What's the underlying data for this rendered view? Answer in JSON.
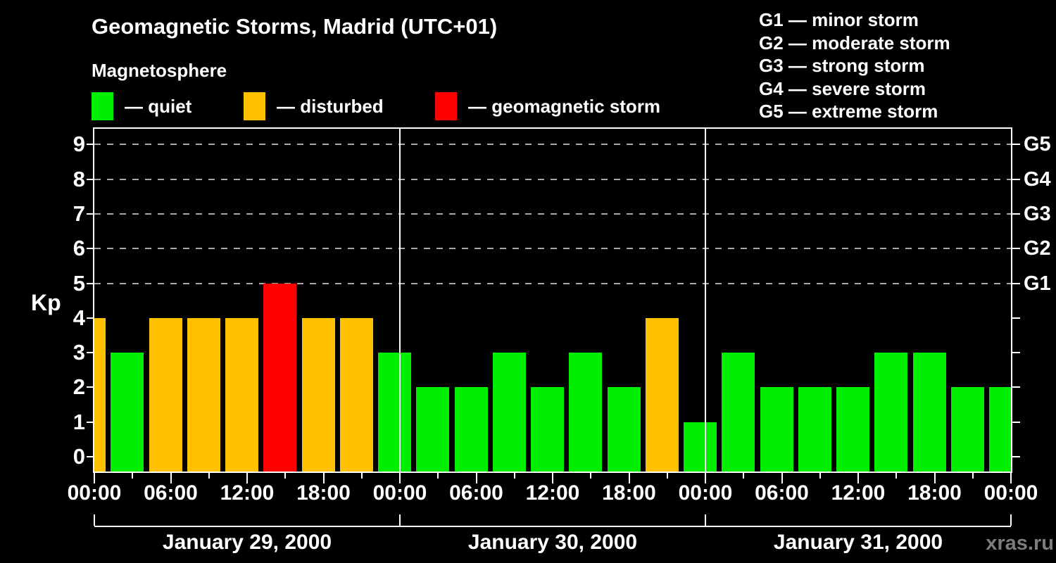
{
  "header": {
    "title": "Geomagnetic Storms, Madrid (UTC+01)",
    "subtitle": "Magnetosphere",
    "legend": [
      {
        "name": "quiet",
        "swatch_color": "#00ee00",
        "label": "— quiet"
      },
      {
        "name": "disturbed",
        "swatch_color": "#ffc000",
        "label": "— disturbed"
      },
      {
        "name": "storm",
        "swatch_color": "#ff0000",
        "label": "— geomagnetic storm"
      }
    ],
    "g_legend": [
      "G1 — minor storm",
      "G2 — moderate storm",
      "G3 — strong storm",
      "G4 — severe storm",
      "G5 — extreme storm"
    ]
  },
  "watermark": "xras.ru",
  "chart_data": {
    "type": "bar",
    "title": "Geomagnetic Storms, Madrid (UTC+01)",
    "subtitle": "Magnetosphere",
    "ylabel": "Kp",
    "ylim": [
      0,
      9
    ],
    "y_ticks": [
      0,
      1,
      2,
      3,
      4,
      5,
      6,
      7,
      8,
      9
    ],
    "grid_dashed_levels": [
      5,
      6,
      7,
      8,
      9
    ],
    "right_axis_labels": [
      {
        "kp": 5,
        "label": "G1"
      },
      {
        "kp": 6,
        "label": "G2"
      },
      {
        "kp": 7,
        "label": "G3"
      },
      {
        "kp": 8,
        "label": "G4"
      },
      {
        "kp": 9,
        "label": "G5"
      }
    ],
    "interval_hours": 3,
    "x_tick_labels": [
      "00:00",
      "06:00",
      "12:00",
      "18:00",
      "00:00",
      "06:00",
      "12:00",
      "18:00",
      "00:00",
      "06:00",
      "12:00",
      "18:00",
      "00:00"
    ],
    "days": [
      {
        "label": "January 29, 2000",
        "values": [
          4,
          3,
          4,
          4,
          4,
          5,
          4,
          4
        ]
      },
      {
        "label": "January 30, 2000",
        "values": [
          3,
          2,
          2,
          3,
          2,
          3,
          2,
          4
        ]
      },
      {
        "label": "January 31, 2000",
        "values": [
          1,
          3,
          2,
          2,
          2,
          3,
          3,
          2
        ]
      }
    ],
    "trailing_bar_value": 2,
    "color_rules": {
      "quiet_max": 3,
      "disturbed": 4,
      "storm_min": 5
    },
    "colors": {
      "quiet": "#00ee00",
      "disturbed": "#ffc000",
      "storm": "#ff0000"
    },
    "legend_position": "top-left",
    "grid": "dashed horizontal at storm levels only"
  }
}
